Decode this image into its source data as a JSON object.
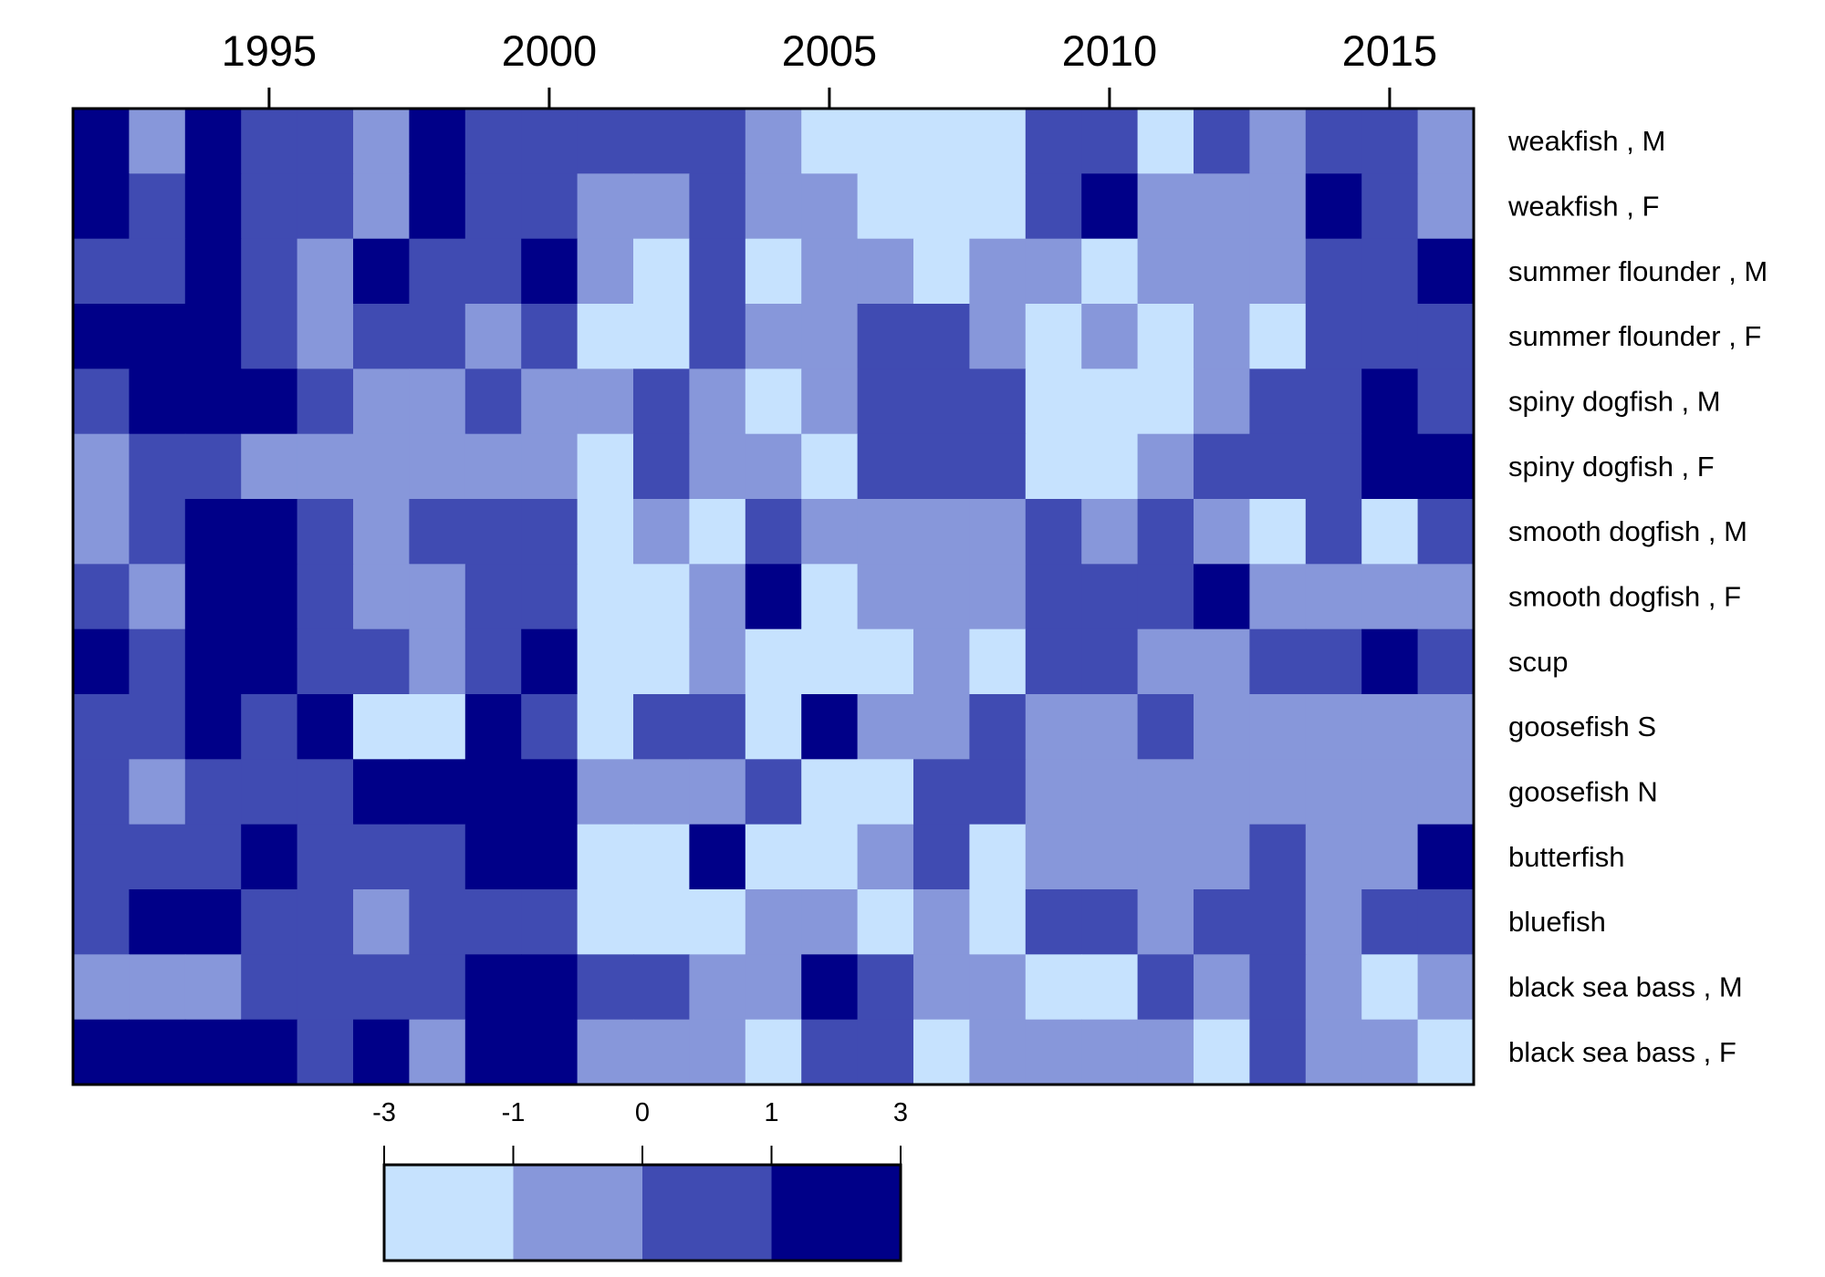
{
  "chart_data": {
    "type": "heatmap",
    "x_ticks": [
      "1995",
      "2000",
      "2005",
      "2010",
      "2015"
    ],
    "x_tick_years": [
      1995,
      2000,
      2005,
      2010,
      2015
    ],
    "years": [
      1992,
      1993,
      1994,
      1995,
      1996,
      1997,
      1998,
      1999,
      2000,
      2001,
      2002,
      2003,
      2004,
      2005,
      2006,
      2007,
      2008,
      2009,
      2010,
      2011,
      2012,
      2013,
      2014,
      2015,
      2016
    ],
    "rows": [
      "weakfish , M",
      "weakfish , F",
      "summer flounder , M",
      "summer flounder , F",
      "spiny dogfish , M",
      "spiny dogfish , F",
      "smooth dogfish , M",
      "smooth dogfish , F",
      "scup",
      "goosefish S",
      "goosefish N",
      "butterfish",
      "bluefish",
      "black sea bass , M",
      "black sea bass , F"
    ],
    "values": [
      [
        4,
        2,
        4,
        3,
        3,
        2,
        4,
        3,
        3,
        3,
        3,
        3,
        2,
        1,
        1,
        1,
        1,
        3,
        3,
        1,
        3,
        2,
        3,
        3,
        2
      ],
      [
        4,
        3,
        4,
        3,
        3,
        2,
        4,
        3,
        3,
        2,
        2,
        3,
        2,
        2,
        1,
        1,
        1,
        3,
        4,
        2,
        2,
        2,
        4,
        3,
        2
      ],
      [
        3,
        3,
        4,
        3,
        2,
        4,
        3,
        3,
        4,
        2,
        1,
        3,
        1,
        2,
        2,
        1,
        2,
        2,
        1,
        2,
        2,
        2,
        3,
        3,
        4
      ],
      [
        4,
        4,
        4,
        3,
        2,
        3,
        3,
        2,
        3,
        1,
        1,
        3,
        2,
        2,
        3,
        3,
        2,
        1,
        2,
        1,
        2,
        1,
        3,
        3,
        3
      ],
      [
        3,
        4,
        4,
        4,
        3,
        2,
        2,
        3,
        2,
        2,
        3,
        2,
        1,
        2,
        3,
        3,
        3,
        1,
        1,
        1,
        2,
        3,
        3,
        4,
        3
      ],
      [
        2,
        3,
        3,
        2,
        2,
        2,
        2,
        2,
        2,
        1,
        3,
        2,
        2,
        1,
        3,
        3,
        3,
        1,
        1,
        2,
        3,
        3,
        3,
        4,
        4
      ],
      [
        2,
        3,
        4,
        4,
        3,
        2,
        3,
        3,
        3,
        1,
        2,
        1,
        3,
        2,
        2,
        2,
        2,
        3,
        2,
        3,
        2,
        1,
        3,
        1,
        3
      ],
      [
        3,
        2,
        4,
        4,
        3,
        2,
        2,
        3,
        3,
        1,
        1,
        2,
        4,
        1,
        2,
        2,
        2,
        3,
        3,
        3,
        4,
        2,
        2,
        2,
        2
      ],
      [
        4,
        3,
        4,
        4,
        3,
        3,
        2,
        3,
        4,
        1,
        1,
        2,
        1,
        1,
        1,
        2,
        1,
        3,
        3,
        2,
        2,
        3,
        3,
        4,
        3
      ],
      [
        3,
        3,
        4,
        3,
        4,
        1,
        1,
        4,
        3,
        1,
        3,
        3,
        1,
        4,
        2,
        2,
        3,
        2,
        2,
        3,
        2,
        2,
        2,
        2,
        2
      ],
      [
        3,
        2,
        3,
        3,
        3,
        4,
        4,
        4,
        4,
        2,
        2,
        2,
        3,
        1,
        1,
        3,
        3,
        2,
        2,
        2,
        2,
        2,
        2,
        2,
        2
      ],
      [
        3,
        3,
        3,
        4,
        3,
        3,
        3,
        4,
        4,
        1,
        1,
        4,
        1,
        1,
        2,
        3,
        1,
        2,
        2,
        2,
        2,
        3,
        2,
        2,
        4
      ],
      [
        3,
        4,
        4,
        3,
        3,
        2,
        3,
        3,
        3,
        1,
        1,
        1,
        2,
        2,
        1,
        2,
        1,
        3,
        3,
        2,
        3,
        3,
        2,
        3,
        3
      ],
      [
        2,
        2,
        2,
        3,
        3,
        3,
        3,
        4,
        4,
        3,
        3,
        2,
        2,
        4,
        3,
        2,
        2,
        1,
        1,
        3,
        2,
        3,
        2,
        1,
        2
      ],
      [
        4,
        4,
        4,
        4,
        3,
        4,
        2,
        4,
        4,
        2,
        2,
        2,
        1,
        3,
        3,
        1,
        2,
        2,
        2,
        2,
        1,
        3,
        2,
        2,
        1
      ]
    ],
    "legend": {
      "breaks": [
        "-3",
        "-1",
        "0",
        "1",
        "3"
      ],
      "bins": [
        "-3 to -1",
        "-1 to 0",
        "0 to 1",
        "1 to 3"
      ]
    },
    "colors": [
      "#c6e2fe",
      "#8797da",
      "#404bb2",
      "#000088"
    ]
  }
}
